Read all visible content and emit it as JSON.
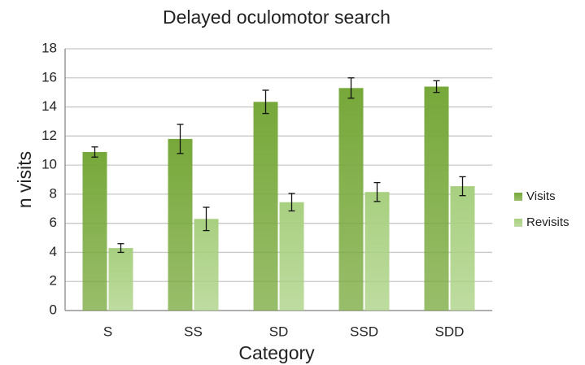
{
  "chart_data": {
    "type": "bar",
    "title": "Delayed oculomotor search",
    "x_label": "Category",
    "y_label": "n visits",
    "categories": [
      "S",
      "SS",
      "SD",
      "SSD",
      "SDD"
    ],
    "series": [
      {
        "name": "Visits",
        "color": "#77a83a",
        "values": [
          10.9,
          11.8,
          14.35,
          15.3,
          15.4
        ],
        "errors": [
          0.35,
          1.0,
          0.8,
          0.7,
          0.4
        ]
      },
      {
        "name": "Revisits",
        "color": "#a8d080",
        "values": [
          4.3,
          6.3,
          7.45,
          8.15,
          8.55
        ],
        "errors": [
          0.3,
          0.8,
          0.6,
          0.65,
          0.65
        ]
      }
    ],
    "ylim": [
      0,
      18
    ],
    "yticks": [
      0,
      2,
      4,
      6,
      8,
      10,
      12,
      14,
      16,
      18
    ],
    "grid": true,
    "legend": "right"
  }
}
